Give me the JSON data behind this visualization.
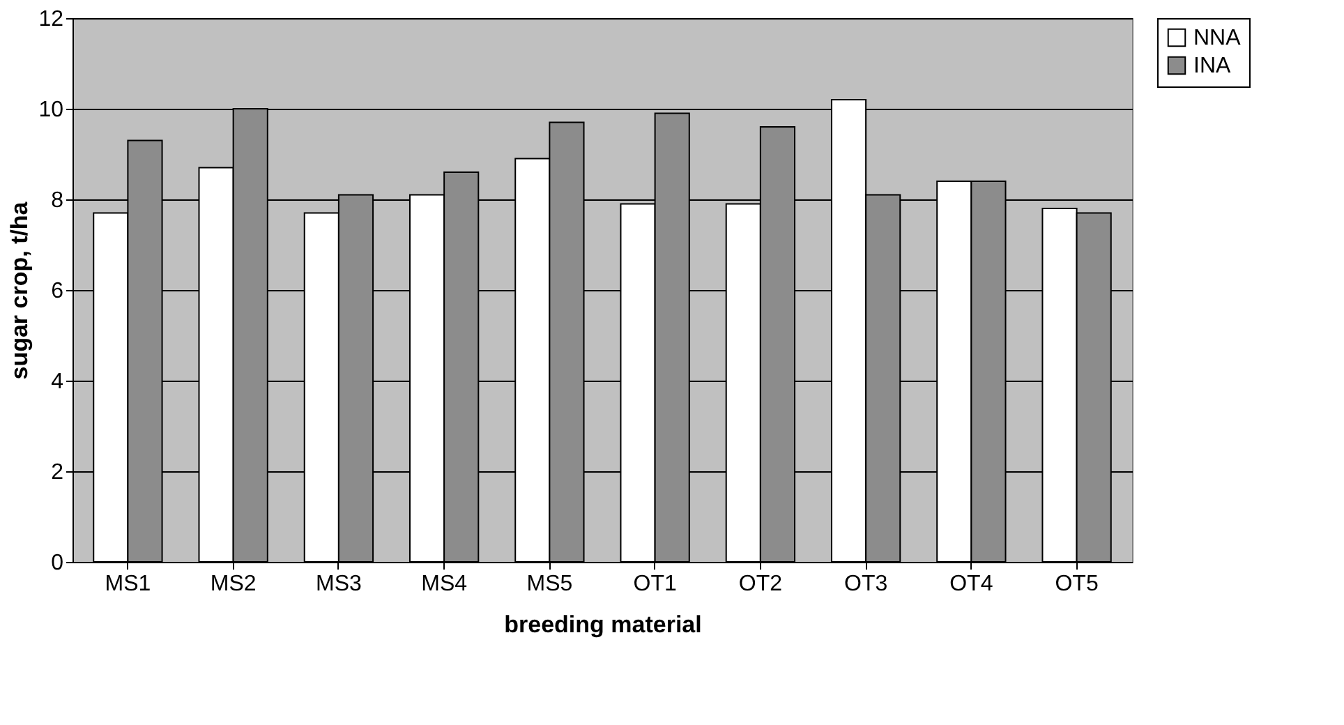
{
  "chart_data": {
    "type": "bar",
    "xlabel": "breeding material",
    "ylabel": "sugar crop, t/ha",
    "categories": [
      "MS1",
      "MS2",
      "MS3",
      "MS4",
      "MS5",
      "OT1",
      "OT2",
      "OT3",
      "OT4",
      "OT5"
    ],
    "series": [
      {
        "name": "NNA",
        "color": "#ffffff",
        "values": [
          7.7,
          8.7,
          7.7,
          8.1,
          8.9,
          7.9,
          7.9,
          10.2,
          8.4,
          7.8
        ]
      },
      {
        "name": "INA",
        "color": "#8c8c8c",
        "values": [
          9.3,
          10.0,
          8.1,
          8.6,
          9.7,
          9.9,
          9.6,
          8.1,
          8.4,
          7.7
        ]
      }
    ],
    "ylim": [
      0,
      12
    ],
    "yticks": [
      0,
      2,
      4,
      6,
      8,
      10,
      12
    ],
    "grid": "y",
    "legend": "right"
  }
}
